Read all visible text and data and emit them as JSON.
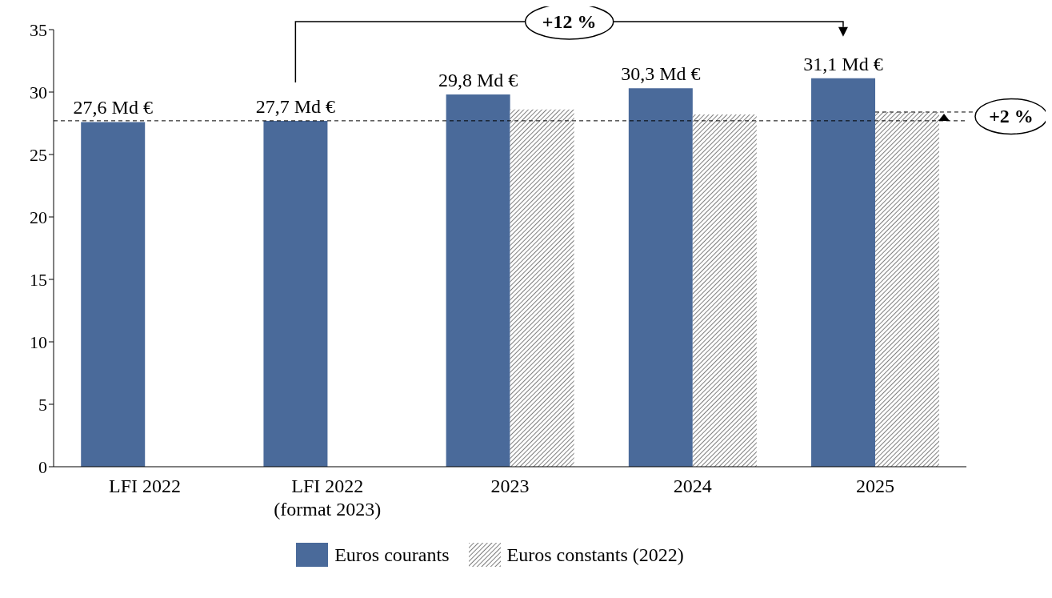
{
  "chart_data": {
    "type": "bar",
    "categories": [
      "LFI 2022",
      "LFI 2022\n(format 2023)",
      "2023",
      "2024",
      "2025"
    ],
    "series": [
      {
        "name": "Euros courants",
        "color": "#4a6a9a",
        "values": [
          27.6,
          27.7,
          29.8,
          30.3,
          31.1
        ],
        "value_labels": [
          "27,6 Md €",
          "27,7 Md €",
          "29,8 Md €",
          "30,3 Md €",
          "31,1 Md €"
        ]
      },
      {
        "name": "Euros constants (2022)",
        "color": "#7f7f7f",
        "values": [
          null,
          null,
          28.6,
          28.2,
          28.4
        ]
      }
    ],
    "ylim": [
      0,
      35
    ],
    "yticks": [
      0,
      5,
      10,
      15,
      20,
      25,
      30,
      35
    ],
    "grid": false,
    "legend": "bottom",
    "ref_lines": [
      {
        "axis": "y",
        "value": 27.7,
        "line_style": "dashed",
        "color": "#000000"
      }
    ],
    "annotations": [
      "+12 %",
      {
        "text": "+2 %",
        "x": "2025",
        "y": 28.4
      }
    ]
  }
}
